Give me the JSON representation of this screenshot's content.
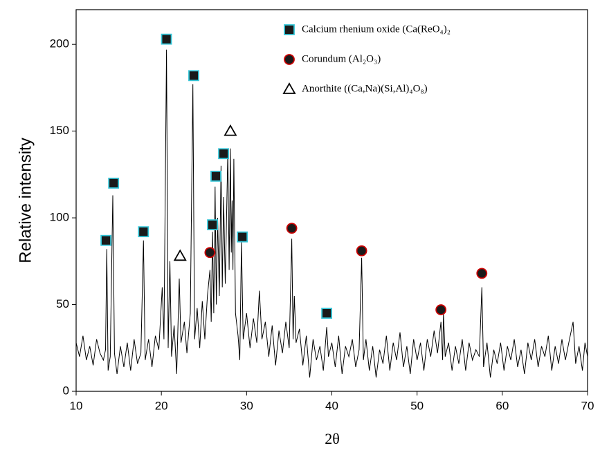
{
  "chart_data": {
    "type": "line",
    "x_label": "2θ",
    "y_label": "Relative intensity",
    "xlim": [
      10,
      70
    ],
    "xticks": [
      10,
      20,
      30,
      40,
      50,
      60,
      70
    ],
    "ylim": [
      0,
      220
    ],
    "yticks": [
      0,
      50,
      100,
      150,
      200
    ],
    "pattern": {
      "color": "#000000",
      "x": [
        10,
        10.4,
        10.8,
        11.2,
        11.6,
        12,
        12.4,
        12.8,
        13.2,
        13.45,
        13.6,
        13.75,
        14,
        14.3,
        14.5,
        14.8,
        15.2,
        15.6,
        16,
        16.4,
        16.8,
        17.2,
        17.6,
        17.9,
        18.1,
        18.5,
        18.9,
        19.3,
        19.7,
        20.1,
        20.3,
        20.6,
        20.8,
        21,
        21.2,
        21.5,
        21.8,
        22.1,
        22.3,
        22.7,
        23,
        23.4,
        23.7,
        23.9,
        24.2,
        24.5,
        24.8,
        25.1,
        25.4,
        25.7,
        25.85,
        26,
        26.15,
        26.3,
        26.45,
        26.6,
        26.8,
        27,
        27.15,
        27.3,
        27.5,
        27.8,
        27.95,
        28.1,
        28.2,
        28.3,
        28.4,
        28.5,
        28.7,
        29,
        29.2,
        29.4,
        29.6,
        30,
        30.4,
        30.8,
        31.2,
        31.5,
        31.8,
        32.2,
        32.6,
        33,
        33.4,
        33.8,
        34.2,
        34.6,
        35,
        35.3,
        35.45,
        35.6,
        35.8,
        36.2,
        36.6,
        37,
        37.4,
        37.8,
        38.2,
        38.6,
        39,
        39.4,
        39.6,
        40,
        40.4,
        40.8,
        41.2,
        41.6,
        42,
        42.4,
        42.8,
        43.2,
        43.5,
        43.7,
        44,
        44.4,
        44.8,
        45.2,
        45.6,
        46,
        46.4,
        46.8,
        47.2,
        47.6,
        48,
        48.4,
        48.8,
        49.2,
        49.6,
        50,
        50.4,
        50.8,
        51.2,
        51.6,
        52,
        52.4,
        52.8,
        53,
        53.1,
        53.3,
        53.7,
        54.1,
        54.5,
        54.9,
        55.3,
        55.7,
        56.1,
        56.5,
        56.9,
        57.3,
        57.6,
        57.8,
        58.2,
        58.6,
        59,
        59.4,
        59.8,
        60.2,
        60.6,
        61,
        61.4,
        61.8,
        62.2,
        62.6,
        63,
        63.4,
        63.8,
        64.2,
        64.6,
        65,
        65.4,
        65.8,
        66.2,
        66.6,
        67,
        67.4,
        67.8,
        68.3,
        68.6,
        69,
        69.4,
        69.7,
        70
      ],
      "y": [
        28,
        20,
        32,
        18,
        26,
        15,
        30,
        22,
        18,
        24,
        82,
        12,
        20,
        113,
        22,
        10,
        26,
        14,
        28,
        12,
        30,
        16,
        22,
        87,
        18,
        30,
        14,
        32,
        24,
        60,
        30,
        197,
        25,
        75,
        20,
        38,
        10,
        65,
        28,
        40,
        22,
        45,
        177,
        30,
        48,
        25,
        52,
        30,
        55,
        70,
        40,
        92,
        45,
        118,
        50,
        100,
        55,
        130,
        60,
        112,
        62,
        138,
        70,
        140,
        80,
        110,
        70,
        134,
        45,
        32,
        18,
        86,
        30,
        45,
        25,
        42,
        28,
        58,
        30,
        40,
        20,
        38,
        15,
        35,
        22,
        40,
        25,
        88,
        30,
        55,
        28,
        36,
        15,
        32,
        8,
        30,
        18,
        26,
        12,
        37,
        20,
        28,
        14,
        32,
        10,
        26,
        20,
        30,
        14,
        24,
        77,
        18,
        30,
        12,
        26,
        8,
        24,
        16,
        32,
        12,
        28,
        18,
        34,
        14,
        26,
        10,
        30,
        18,
        28,
        12,
        30,
        20,
        35,
        22,
        40,
        18,
        45,
        20,
        28,
        12,
        26,
        16,
        30,
        12,
        28,
        18,
        24,
        20,
        60,
        14,
        28,
        8,
        24,
        16,
        28,
        12,
        26,
        18,
        30,
        14,
        24,
        10,
        28,
        18,
        30,
        14,
        26,
        20,
        32,
        12,
        26,
        16,
        30,
        18,
        28,
        40,
        16,
        26,
        12,
        28,
        20
      ]
    },
    "markers": [
      {
        "name": "Calcium rhenium oxide (Ca(ReO₄)₂",
        "shape": "square",
        "color": "#1a1a1a",
        "edge": "#35c6d8",
        "x": [
          13.5,
          14.4,
          17.9,
          20.6,
          23.8,
          26.0,
          26.4,
          27.3,
          29.5,
          39.4
        ],
        "y": [
          87,
          120,
          92,
          203,
          182,
          96,
          124,
          137,
          89,
          45
        ]
      },
      {
        "name": "Corundum (Al₂O₃)",
        "shape": "circle",
        "color": "#1a1a1a",
        "edge": "#cc0000",
        "x": [
          25.7,
          35.3,
          43.5,
          52.8,
          57.6
        ],
        "y": [
          80,
          94,
          81,
          47,
          68
        ]
      },
      {
        "name": "Anorthite ((Ca,Na)(Si,Al)₄O₈)",
        "shape": "triangle",
        "color": "#ffffff",
        "edge": "#000000",
        "x": [
          22.2,
          28.1
        ],
        "y": [
          78,
          150
        ]
      }
    ]
  }
}
